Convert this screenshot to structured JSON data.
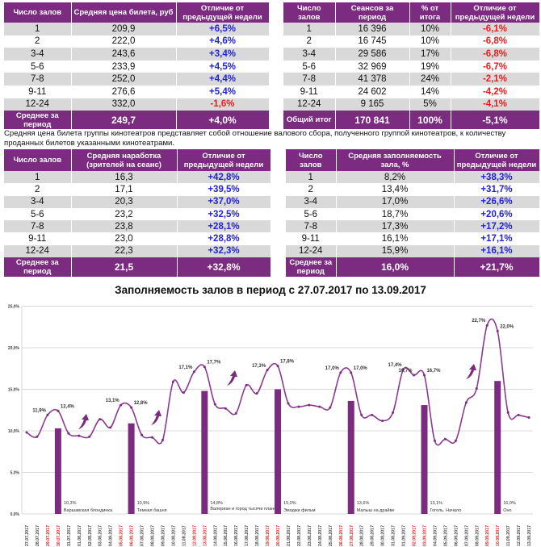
{
  "tables": [
    {
      "id": "price",
      "headers": [
        "Число залов",
        "Средняя цена билета, руб",
        "Отличие от предыдущей недели"
      ],
      "rows": [
        [
          "1",
          "209,9",
          "+6,5%"
        ],
        [
          "2",
          "222,0",
          "+4,6%"
        ],
        [
          "3-4",
          "243,6",
          "+3,4%"
        ],
        [
          "5-6",
          "233,9",
          "+4,5%"
        ],
        [
          "7-8",
          "252,0",
          "+4,4%"
        ],
        [
          "9-11",
          "276,6",
          "+5,4%"
        ],
        [
          "12-24",
          "332,0",
          "-1,6%"
        ]
      ],
      "total": [
        "Среднее за период",
        "249,7",
        "+4,0%"
      ]
    },
    {
      "id": "sessions",
      "headers": [
        "Число залов",
        "Сеансов за период",
        "% от итога",
        "Отличие от предыдущей недели"
      ],
      "rows": [
        [
          "1",
          "16 396",
          "10%",
          "-6,1%"
        ],
        [
          "2",
          "16 745",
          "10%",
          "-6,8%"
        ],
        [
          "3-4",
          "29 586",
          "17%",
          "-6,8%"
        ],
        [
          "5-6",
          "32 969",
          "19%",
          "-6,7%"
        ],
        [
          "7-8",
          "41 378",
          "24%",
          "-2,1%"
        ],
        [
          "9-11",
          "24 602",
          "14%",
          "-4,2%"
        ],
        [
          "12-24",
          "9 165",
          "5%",
          "-4,1%"
        ]
      ],
      "total": [
        "Общий итог",
        "170 841",
        "100%",
        "-5,1%"
      ]
    },
    {
      "id": "attendance",
      "headers": [
        "Число залов",
        "Средняя наработка (зрителей на сеанс)",
        "Отличие от предыдущей недели"
      ],
      "rows": [
        [
          "1",
          "16,3",
          "+42,8%"
        ],
        [
          "2",
          "17,1",
          "+39,5%"
        ],
        [
          "3-4",
          "20,3",
          "+37,0%"
        ],
        [
          "5-6",
          "23,2",
          "+32,5%"
        ],
        [
          "7-8",
          "23,8",
          "+28,1%"
        ],
        [
          "9-11",
          "23,0",
          "+28,8%"
        ],
        [
          "12-24",
          "22,3",
          "+32,3%"
        ]
      ],
      "total": [
        "Среднее за период",
        "21,5",
        "+32,8%"
      ]
    },
    {
      "id": "occupancy",
      "headers": [
        "Число залов",
        "Средняя заполняемость зала, %",
        "Отличие от предыдущей недели"
      ],
      "rows": [
        [
          "1",
          "8,2%",
          "+38,3%"
        ],
        [
          "2",
          "13,4%",
          "+31,7%"
        ],
        [
          "3-4",
          "17,0%",
          "+26,6%"
        ],
        [
          "5-6",
          "18,7%",
          "+20,6%"
        ],
        [
          "7-8",
          "17,3%",
          "+17,2%"
        ],
        [
          "9-11",
          "16,1%",
          "+17,1%"
        ],
        [
          "12-24",
          "15,9%",
          "+16,1%"
        ]
      ],
      "total": [
        "Среднее за период",
        "16,0%",
        "+21,7%"
      ]
    }
  ],
  "note": "Средняя цена билета группы кинотеатров представляет собой отношение валового сбора, полученного группой кинотеатров, к количеству проданных билетов указанными кинотеатрами.",
  "colors": {
    "accent": "#7b2b80",
    "positive": "#2323d3",
    "negative": "#e3201f",
    "weekend": "#e3201f"
  },
  "chart_data": {
    "type": "line",
    "title": "Заполняемость залов в период с 27.07.2017 по 13.09.2017",
    "ylim": [
      0,
      25
    ],
    "yticks": [
      "0,0%",
      "5,0%",
      "10,0%",
      "15,0%",
      "20,0%",
      "25,0%"
    ],
    "grid": true,
    "x": [
      "27.07.2017",
      "28.07.2017",
      "29.07.2017",
      "30.07.2017",
      "31.07.2017",
      "01.08.2017",
      "02.08.2017",
      "03.08.2017",
      "04.08.2017",
      "05.08.2017",
      "06.08.2017",
      "07.08.2017",
      "08.08.2017",
      "09.08.2017",
      "10.08.2017",
      "11.08.2017",
      "12.08.2017",
      "13.08.2017",
      "14.08.2017",
      "15.08.2017",
      "16.08.2017",
      "17.08.2017",
      "18.08.2017",
      "19.08.2017",
      "20.08.2017",
      "21.08.2017",
      "22.08.2017",
      "23.08.2017",
      "24.08.2017",
      "25.08.2017",
      "26.08.2017",
      "27.08.2017",
      "28.08.2017",
      "29.08.2017",
      "30.08.2017",
      "31.08.2017",
      "01.09.2017",
      "02.09.2017",
      "03.09.2017",
      "04.09.2017",
      "05.09.2017",
      "06.09.2017",
      "07.09.2017",
      "08.09.2017",
      "09.09.2017",
      "10.09.2017",
      "11.09.2017",
      "12.09.2017",
      "13.09.2017"
    ],
    "series": [
      {
        "name": "Заполняемость",
        "values": [
          9.8,
          9.3,
          11.9,
          12.4,
          9.7,
          9.4,
          9.3,
          11.4,
          10.4,
          13.1,
          12.8,
          9.5,
          9.2,
          8.9,
          15.9,
          14.6,
          17.1,
          17.7,
          13.2,
          12.7,
          12.1,
          15.5,
          14.5,
          17.3,
          17.8,
          13.3,
          12.9,
          13.1,
          12.9,
          12.8,
          17.0,
          17.0,
          11.9,
          11.9,
          11.2,
          12.2,
          17.4,
          16.7,
          16.7,
          8.8,
          9.0,
          8.8,
          13.4,
          15.1,
          22.7,
          22.0,
          12.2,
          11.9,
          11.6
        ],
        "labels": [
          null,
          null,
          "11,9%",
          "12,4%",
          null,
          null,
          null,
          null,
          null,
          "13,1%",
          "12,8%",
          null,
          null,
          null,
          null,
          null,
          "17,1%",
          "17,7%",
          null,
          null,
          null,
          null,
          null,
          "17,3%",
          "17,8%",
          null,
          null,
          null,
          null,
          null,
          "17,0%",
          "17,0%",
          null,
          null,
          null,
          null,
          "17,4%",
          "16,7%",
          "16,7%",
          null,
          null,
          null,
          null,
          null,
          "22,7%",
          "22,0%",
          null,
          null,
          null
        ]
      }
    ],
    "bars": [
      {
        "date": "30.07.2017",
        "value": 10.3,
        "label": "10,3%",
        "film": "Варшавская блондинка"
      },
      {
        "date": "06.08.2017",
        "value": 10.9,
        "label": "10,9%",
        "film": "Темная башня"
      },
      {
        "date": "13.08.2017",
        "value": 14.8,
        "label": "14,8%",
        "film": "Валериан и город тысячи планет"
      },
      {
        "date": "20.08.2017",
        "value": 15.0,
        "label": "15,0%",
        "film": "Эмоджи фильм"
      },
      {
        "date": "27.08.2017",
        "value": 13.6,
        "label": "13,6%",
        "film": "Малыш на драйве"
      },
      {
        "date": "03.09.2017",
        "value": 13.1,
        "label": "13,1%",
        "film": "Гоголь. Начало"
      },
      {
        "date": "10.09.2017",
        "value": 16.0,
        "label": "16,0%",
        "film": "Оно"
      }
    ]
  }
}
